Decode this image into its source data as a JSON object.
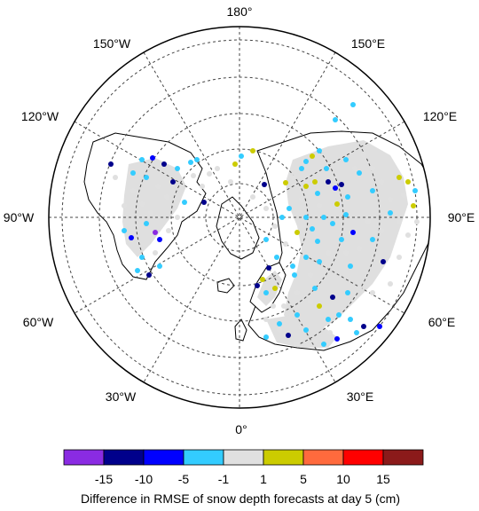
{
  "map": {
    "center_label": "",
    "meridian_labels": {
      "deg180": "180°",
      "e150": "150°E",
      "e120": "120°E",
      "e90": "90°E",
      "e60": "60°E",
      "e30": "30°E",
      "deg0": "0°",
      "w30": "30°W",
      "w60": "60°W",
      "w90": "90°W",
      "w120": "120°W",
      "w150": "150°W"
    }
  },
  "colorbar": {
    "colors": [
      "#8a2be2",
      "#00008b",
      "#0000ff",
      "#33ccff",
      "#e0e0e0",
      "#cccc00",
      "#ff6a3d",
      "#ff0000",
      "#8b1a1a"
    ],
    "tick_labels": [
      "-15",
      "-10",
      "-5",
      "-1",
      "1",
      "5",
      "10",
      "15"
    ],
    "caption": "Difference in RMSE of snow depth forecasts at day 5 (cm)"
  },
  "legend_colors": {
    "no_change": "#dcdcdc",
    "land_outline": "#000000",
    "grid": "#444444"
  }
}
